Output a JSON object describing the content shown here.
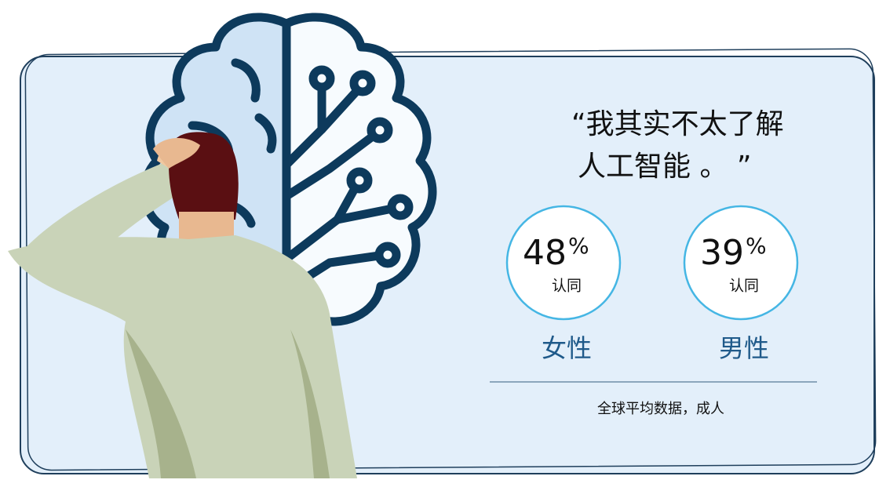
{
  "quote": {
    "lines": [
      "“我其实不太了解",
      "人工智能 。 ”"
    ]
  },
  "stats": [
    {
      "value": 48,
      "unit": "%",
      "caption": "认同",
      "group": "女性"
    },
    {
      "value": 39,
      "unit": "%",
      "caption": "认同",
      "group": "男性"
    }
  ],
  "footnote": "全球平均数据，成人"
}
